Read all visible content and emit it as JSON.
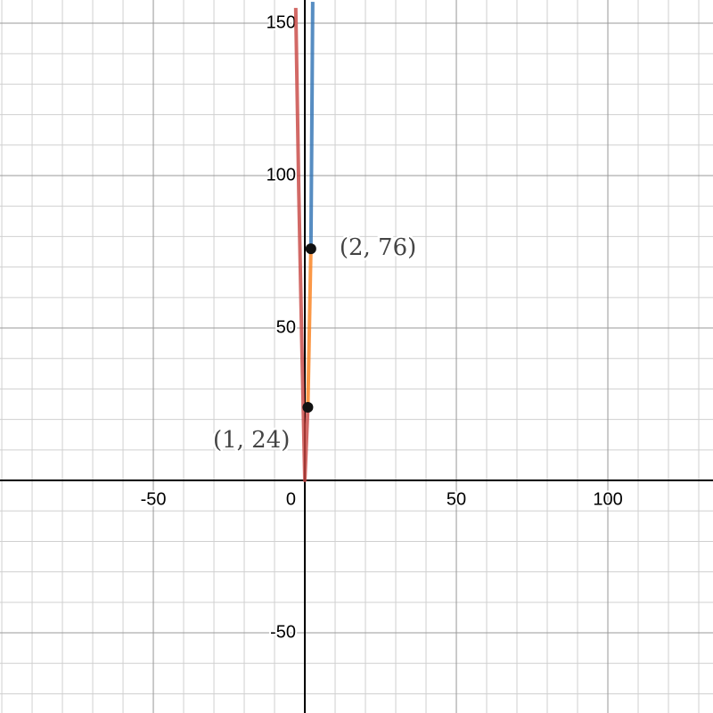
{
  "chart_data": {
    "type": "line",
    "xlim": [
      -100.6,
      134.7
    ],
    "ylim": [
      -76.3,
      157.6
    ],
    "xticks": [
      -50,
      0,
      50,
      100
    ],
    "yticks": [
      -50,
      50,
      100,
      150
    ],
    "xminor": [
      -100,
      -90,
      -80,
      -70,
      -60,
      -50,
      -40,
      -30,
      -20,
      -10,
      0,
      10,
      20,
      30,
      40,
      50,
      60,
      70,
      80,
      90,
      100,
      110,
      120,
      130
    ],
    "yminor": [
      -70,
      -60,
      -50,
      -40,
      -30,
      -20,
      -10,
      0,
      10,
      20,
      30,
      40,
      50,
      60,
      70,
      80,
      90,
      100,
      110,
      120,
      130,
      140,
      150
    ],
    "grid": true,
    "series": [
      {
        "color": "#c74440",
        "x": [
          -3,
          -2,
          -1,
          0,
          1
        ],
        "values": [
          155,
          95,
          45,
          0,
          24
        ]
      },
      {
        "color": "#fa7e19",
        "x": [
          1,
          2
        ],
        "values": [
          24,
          76
        ]
      },
      {
        "color": "#2d70b3",
        "x": [
          2,
          2.3,
          2.6
        ],
        "values": [
          76,
          115,
          157
        ]
      }
    ],
    "points": [
      {
        "x": 1,
        "y": 24,
        "label": "(1, 24)"
      },
      {
        "x": 2,
        "y": 76,
        "label": "(2, 76)"
      }
    ]
  }
}
